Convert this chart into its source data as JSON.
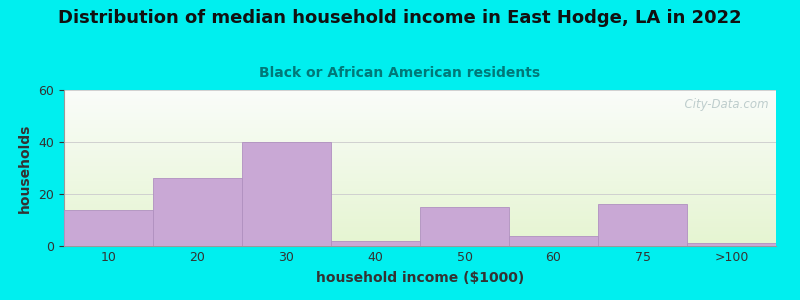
{
  "title": "Distribution of median household income in East Hodge, LA in 2022",
  "subtitle": "Black or African American residents",
  "xlabel": "household income ($1000)",
  "ylabel": "households",
  "bar_labels": [
    "10",
    "20",
    "30",
    "40",
    "50",
    "60",
    "75",
    ">100"
  ],
  "bar_heights": [
    14,
    26,
    40,
    2,
    15,
    4,
    16,
    1
  ],
  "bar_color": "#C9A8D5",
  "bar_edgecolor": "#B090C0",
  "ylim": [
    0,
    60
  ],
  "yticks": [
    0,
    20,
    40,
    60
  ],
  "background_color": "#00EFEF",
  "plot_bg_topleft": "#D8EED8",
  "plot_bg_topright": "#F8F8F8",
  "plot_bg_bottomleft": "#E8F5E0",
  "plot_bg_bottomright": "#FAFCFA",
  "title_fontsize": 13,
  "subtitle_fontsize": 10,
  "subtitle_color": "#007878",
  "axis_label_fontsize": 10,
  "watermark_text": "  City-Data.com",
  "watermark_color": "#B8C8C8",
  "grid_color": "#D0D0D0"
}
